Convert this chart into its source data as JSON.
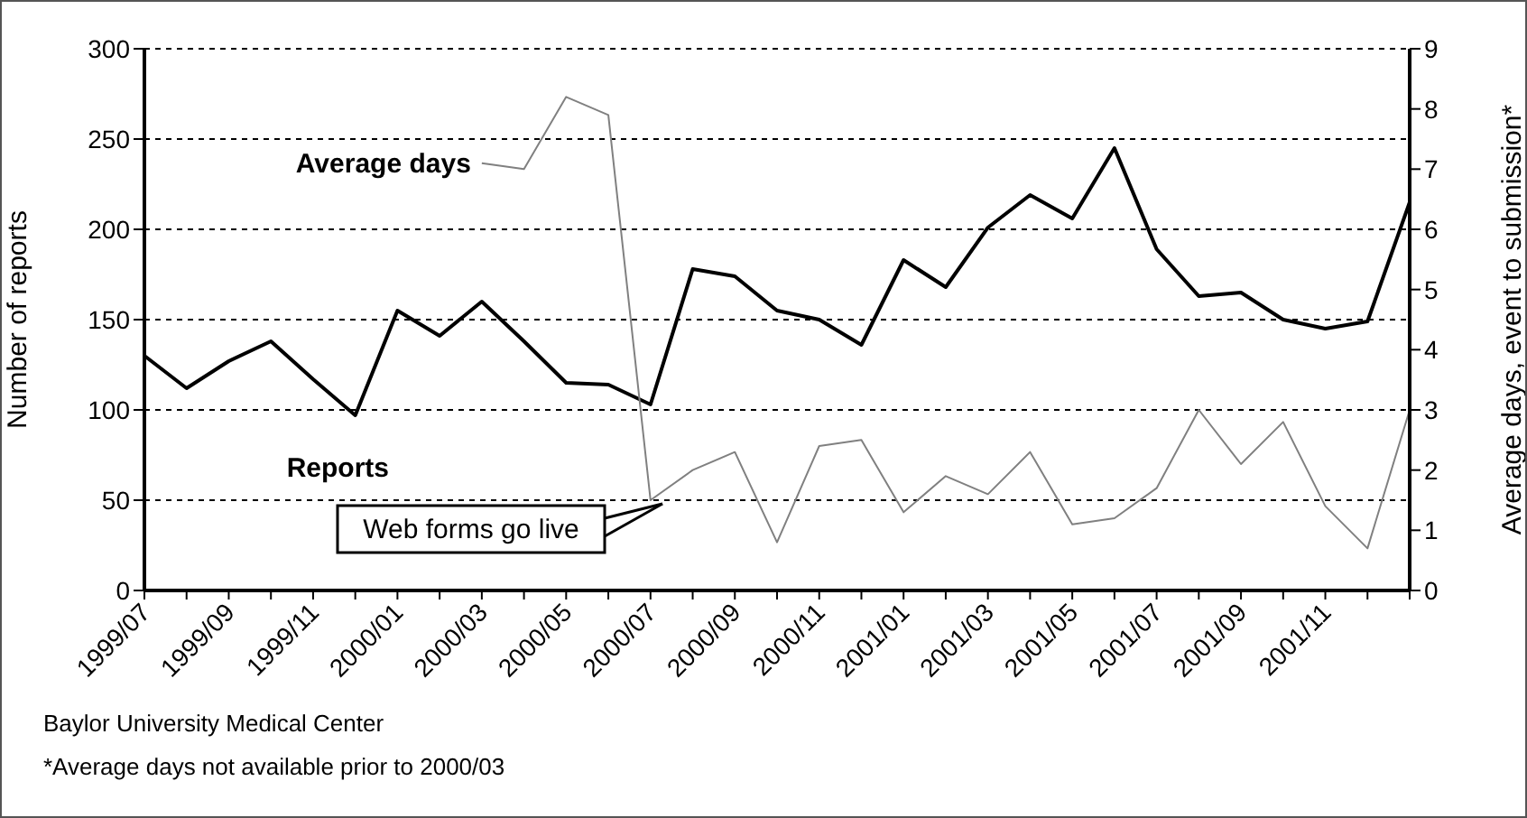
{
  "chart_data": {
    "type": "line",
    "xlabel": null,
    "ylabel": "Number of reports",
    "y2label": "Average days, event to submission*",
    "categories": [
      "1999/07",
      null,
      "1999/09",
      null,
      "1999/11",
      null,
      "2000/01",
      null,
      "2000/03",
      null,
      "2000/05",
      null,
      "2000/07",
      null,
      "2000/09",
      null,
      "2000/11",
      null,
      "2001/01",
      null,
      "2001/03",
      null,
      "2001/05",
      null,
      "2001/07",
      null,
      "2001/09",
      null,
      "2001/11",
      null,
      null
    ],
    "series": [
      {
        "name": "Reports",
        "color": "#000000",
        "values": [
          130,
          112,
          127,
          138,
          117,
          97,
          155,
          141,
          160,
          138,
          115,
          114,
          103,
          178,
          174,
          155,
          150,
          136,
          183,
          168,
          201,
          219,
          206,
          245,
          189,
          163,
          165,
          150,
          145,
          149,
          215
        ]
      },
      {
        "name": "Average days",
        "color": "#808080",
        "axis": "y2",
        "values": [
          null,
          null,
          null,
          null,
          null,
          null,
          null,
          null,
          7.1,
          7.0,
          8.2,
          7.9,
          1.5,
          2.0,
          2.3,
          0.8,
          2.4,
          2.5,
          1.3,
          1.9,
          1.6,
          2.3,
          1.1,
          1.2,
          1.7,
          3.0,
          2.1,
          2.8,
          1.4,
          0.7,
          3.0
        ]
      }
    ],
    "ylim": [
      0,
      300
    ],
    "yticks": [
      0,
      50,
      100,
      150,
      200,
      250,
      300
    ],
    "y2lim": [
      0,
      9
    ],
    "y2ticks": [
      0,
      1,
      2,
      3,
      4,
      5,
      6,
      7,
      8,
      9
    ],
    "grid": "y",
    "marker": "none",
    "line_style": "solid",
    "annotations": [
      "Web forms go live",
      "Baylor University Medical Center",
      "*Average days not available prior to 2000/03"
    ]
  }
}
